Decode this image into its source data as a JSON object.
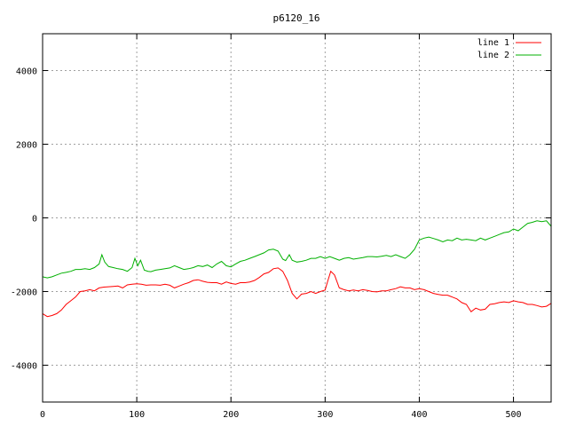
{
  "chart_data": {
    "type": "line",
    "title": "p6120_16",
    "xlabel": "",
    "ylabel": "",
    "xlim": [
      0,
      540
    ],
    "ylim": [
      -5000,
      5000
    ],
    "x_ticks": [
      0,
      100,
      200,
      300,
      400,
      500
    ],
    "y_ticks": [
      -4000,
      -2000,
      0,
      2000,
      4000
    ],
    "x_tick_labels": [
      "0",
      "100",
      "200",
      "300",
      "400",
      "500"
    ],
    "y_tick_labels": [
      "-4000",
      "-2000",
      "0",
      "2000",
      "4000"
    ],
    "grid": true,
    "legend_position": "top-right",
    "series": [
      {
        "name": "line 1",
        "color": "#ff0000",
        "points": [
          [
            0,
            -2600
          ],
          [
            5,
            -2680
          ],
          [
            10,
            -2650
          ],
          [
            15,
            -2600
          ],
          [
            20,
            -2500
          ],
          [
            25,
            -2350
          ],
          [
            30,
            -2250
          ],
          [
            35,
            -2150
          ],
          [
            40,
            -2000
          ],
          [
            45,
            -1980
          ],
          [
            50,
            -1950
          ],
          [
            55,
            -1980
          ],
          [
            60,
            -1900
          ],
          [
            65,
            -1880
          ],
          [
            70,
            -1870
          ],
          [
            75,
            -1860
          ],
          [
            80,
            -1850
          ],
          [
            85,
            -1900
          ],
          [
            90,
            -1820
          ],
          [
            95,
            -1800
          ],
          [
            100,
            -1790
          ],
          [
            105,
            -1800
          ],
          [
            110,
            -1830
          ],
          [
            115,
            -1820
          ],
          [
            120,
            -1820
          ],
          [
            125,
            -1830
          ],
          [
            130,
            -1800
          ],
          [
            135,
            -1830
          ],
          [
            140,
            -1900
          ],
          [
            145,
            -1850
          ],
          [
            150,
            -1800
          ],
          [
            155,
            -1760
          ],
          [
            160,
            -1700
          ],
          [
            165,
            -1680
          ],
          [
            170,
            -1720
          ],
          [
            175,
            -1750
          ],
          [
            180,
            -1760
          ],
          [
            185,
            -1760
          ],
          [
            190,
            -1800
          ],
          [
            195,
            -1740
          ],
          [
            200,
            -1780
          ],
          [
            205,
            -1800
          ],
          [
            210,
            -1760
          ],
          [
            215,
            -1760
          ],
          [
            220,
            -1740
          ],
          [
            225,
            -1700
          ],
          [
            230,
            -1620
          ],
          [
            235,
            -1520
          ],
          [
            240,
            -1480
          ],
          [
            245,
            -1380
          ],
          [
            250,
            -1360
          ],
          [
            255,
            -1450
          ],
          [
            260,
            -1700
          ],
          [
            265,
            -2050
          ],
          [
            270,
            -2200
          ],
          [
            275,
            -2070
          ],
          [
            280,
            -2050
          ],
          [
            285,
            -2000
          ],
          [
            290,
            -2050
          ],
          [
            295,
            -2000
          ],
          [
            300,
            -1960
          ],
          [
            303,
            -1700
          ],
          [
            306,
            -1450
          ],
          [
            310,
            -1550
          ],
          [
            315,
            -1900
          ],
          [
            320,
            -1950
          ],
          [
            325,
            -1980
          ],
          [
            330,
            -1960
          ],
          [
            335,
            -1980
          ],
          [
            340,
            -1950
          ],
          [
            345,
            -1970
          ],
          [
            350,
            -2000
          ],
          [
            355,
            -2010
          ],
          [
            360,
            -1980
          ],
          [
            365,
            -1980
          ],
          [
            370,
            -1950
          ],
          [
            375,
            -1920
          ],
          [
            380,
            -1870
          ],
          [
            385,
            -1900
          ],
          [
            390,
            -1900
          ],
          [
            395,
            -1950
          ],
          [
            400,
            -1920
          ],
          [
            405,
            -1950
          ],
          [
            410,
            -2000
          ],
          [
            415,
            -2050
          ],
          [
            420,
            -2080
          ],
          [
            425,
            -2100
          ],
          [
            430,
            -2100
          ],
          [
            435,
            -2150
          ],
          [
            440,
            -2200
          ],
          [
            445,
            -2300
          ],
          [
            450,
            -2350
          ],
          [
            455,
            -2550
          ],
          [
            460,
            -2450
          ],
          [
            465,
            -2500
          ],
          [
            470,
            -2480
          ],
          [
            475,
            -2350
          ],
          [
            480,
            -2330
          ],
          [
            485,
            -2300
          ],
          [
            490,
            -2280
          ],
          [
            495,
            -2300
          ],
          [
            500,
            -2250
          ],
          [
            505,
            -2280
          ],
          [
            510,
            -2300
          ],
          [
            515,
            -2350
          ],
          [
            520,
            -2350
          ],
          [
            525,
            -2380
          ],
          [
            530,
            -2420
          ],
          [
            535,
            -2400
          ],
          [
            540,
            -2320
          ]
        ]
      },
      {
        "name": "line 2",
        "color": "#00b000",
        "points": [
          [
            0,
            -1600
          ],
          [
            5,
            -1630
          ],
          [
            10,
            -1600
          ],
          [
            15,
            -1550
          ],
          [
            20,
            -1500
          ],
          [
            25,
            -1480
          ],
          [
            30,
            -1450
          ],
          [
            35,
            -1400
          ],
          [
            40,
            -1400
          ],
          [
            45,
            -1380
          ],
          [
            50,
            -1400
          ],
          [
            55,
            -1350
          ],
          [
            60,
            -1250
          ],
          [
            63,
            -1000
          ],
          [
            66,
            -1200
          ],
          [
            70,
            -1320
          ],
          [
            75,
            -1350
          ],
          [
            80,
            -1380
          ],
          [
            85,
            -1400
          ],
          [
            90,
            -1450
          ],
          [
            95,
            -1350
          ],
          [
            98,
            -1100
          ],
          [
            101,
            -1300
          ],
          [
            104,
            -1150
          ],
          [
            108,
            -1420
          ],
          [
            112,
            -1450
          ],
          [
            115,
            -1460
          ],
          [
            120,
            -1420
          ],
          [
            125,
            -1400
          ],
          [
            130,
            -1380
          ],
          [
            135,
            -1360
          ],
          [
            140,
            -1300
          ],
          [
            145,
            -1350
          ],
          [
            150,
            -1400
          ],
          [
            155,
            -1380
          ],
          [
            160,
            -1350
          ],
          [
            165,
            -1300
          ],
          [
            170,
            -1320
          ],
          [
            175,
            -1280
          ],
          [
            180,
            -1350
          ],
          [
            185,
            -1250
          ],
          [
            190,
            -1180
          ],
          [
            195,
            -1300
          ],
          [
            200,
            -1330
          ],
          [
            205,
            -1250
          ],
          [
            210,
            -1180
          ],
          [
            215,
            -1150
          ],
          [
            220,
            -1100
          ],
          [
            225,
            -1050
          ],
          [
            230,
            -1000
          ],
          [
            235,
            -950
          ],
          [
            240,
            -870
          ],
          [
            245,
            -850
          ],
          [
            250,
            -900
          ],
          [
            255,
            -1120
          ],
          [
            258,
            -1160
          ],
          [
            262,
            -1000
          ],
          [
            265,
            -1150
          ],
          [
            270,
            -1200
          ],
          [
            275,
            -1180
          ],
          [
            280,
            -1150
          ],
          [
            285,
            -1100
          ],
          [
            290,
            -1100
          ],
          [
            295,
            -1050
          ],
          [
            300,
            -1100
          ],
          [
            305,
            -1050
          ],
          [
            310,
            -1100
          ],
          [
            315,
            -1150
          ],
          [
            320,
            -1100
          ],
          [
            325,
            -1080
          ],
          [
            330,
            -1120
          ],
          [
            335,
            -1100
          ],
          [
            340,
            -1080
          ],
          [
            345,
            -1050
          ],
          [
            350,
            -1050
          ],
          [
            355,
            -1060
          ],
          [
            360,
            -1040
          ],
          [
            365,
            -1020
          ],
          [
            370,
            -1050
          ],
          [
            375,
            -1000
          ],
          [
            380,
            -1050
          ],
          [
            385,
            -1100
          ],
          [
            390,
            -1000
          ],
          [
            395,
            -850
          ],
          [
            400,
            -600
          ],
          [
            405,
            -550
          ],
          [
            410,
            -520
          ],
          [
            415,
            -560
          ],
          [
            420,
            -600
          ],
          [
            425,
            -650
          ],
          [
            430,
            -600
          ],
          [
            435,
            -620
          ],
          [
            440,
            -550
          ],
          [
            445,
            -600
          ],
          [
            450,
            -580
          ],
          [
            455,
            -600
          ],
          [
            460,
            -620
          ],
          [
            465,
            -550
          ],
          [
            470,
            -600
          ],
          [
            475,
            -550
          ],
          [
            480,
            -500
          ],
          [
            485,
            -450
          ],
          [
            490,
            -400
          ],
          [
            495,
            -380
          ],
          [
            500,
            -300
          ],
          [
            505,
            -350
          ],
          [
            510,
            -250
          ],
          [
            515,
            -150
          ],
          [
            520,
            -120
          ],
          [
            525,
            -80
          ],
          [
            530,
            -100
          ],
          [
            535,
            -80
          ],
          [
            540,
            -230
          ]
        ]
      }
    ]
  }
}
